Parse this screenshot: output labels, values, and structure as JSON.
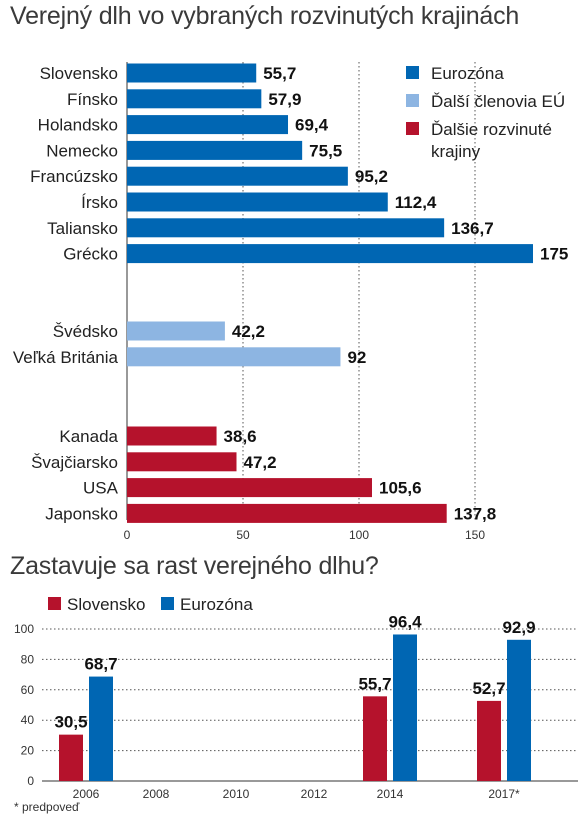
{
  "chart_data": [
    {
      "type": "bar",
      "orientation": "horizontal",
      "title": "Verejný dlh vo vybraných rozvinutých krajinách",
      "xlim": [
        0,
        175
      ],
      "xticks": [
        0,
        50,
        100,
        150
      ],
      "gridlines": "dotted vertical",
      "legend_position": "top-right",
      "groups": [
        {
          "name": "Eurozóna",
          "color": "#0066b3",
          "categories": [
            "Slovensko",
            "Fínsko",
            "Holandsko",
            "Nemecko",
            "Francúzsko",
            "Írsko",
            "Taliansko",
            "Grécko"
          ],
          "values": [
            55.7,
            57.9,
            69.4,
            75.5,
            95.2,
            112.4,
            136.7,
            175
          ],
          "labels": [
            "55,7",
            "57,9",
            "69,4",
            "75,5",
            "95,2",
            "112,4",
            "136,7",
            "175"
          ]
        },
        {
          "name": "Ďalší členovia EÚ",
          "color": "#8db5e2",
          "categories": [
            "Švédsko",
            "Veľká Británia"
          ],
          "values": [
            42.2,
            92
          ],
          "labels": [
            "42,2",
            "92"
          ]
        },
        {
          "name": "Ďalšie rozvinuté krajiny",
          "color": "#b5122c",
          "categories": [
            "Kanada",
            "Švajčiarsko",
            "USA",
            "Japonsko"
          ],
          "values": [
            38.6,
            47.2,
            105.6,
            137.8
          ],
          "labels": [
            "38,6",
            "47,2",
            "105,6",
            "137,8"
          ]
        }
      ],
      "legend": [
        {
          "lines": [
            "Eurozóna"
          ],
          "color": "#0066b3"
        },
        {
          "lines": [
            "Ďalší členovia EÚ"
          ],
          "color": "#8db5e2"
        },
        {
          "lines": [
            "Ďalšie rozvinuté",
            "krajiny"
          ],
          "color": "#b5122c"
        }
      ]
    },
    {
      "type": "bar",
      "orientation": "vertical",
      "title": "Zastavuje sa rast verejného dlhu?",
      "ylim": [
        0,
        100
      ],
      "yticks": [
        0,
        20,
        40,
        60,
        80,
        100
      ],
      "gridlines": "dotted horizontal",
      "legend_position": "top-left",
      "categories": [
        "2006",
        "2008",
        "2010",
        "2012",
        "2014",
        "2017*"
      ],
      "series": [
        {
          "name": "Slovensko",
          "color": "#b5122c",
          "values": [
            30.5,
            null,
            null,
            null,
            55.7,
            52.7
          ],
          "labels": [
            "30,5",
            "",
            "",
            "",
            "55,7",
            "52,7"
          ]
        },
        {
          "name": "Eurozóna",
          "color": "#0066b3",
          "values": [
            68.7,
            null,
            null,
            null,
            96.4,
            92.9
          ],
          "labels": [
            "68,7",
            "",
            "",
            "",
            "96,4",
            "92,9"
          ]
        }
      ],
      "note": "* predpoveď"
    }
  ]
}
